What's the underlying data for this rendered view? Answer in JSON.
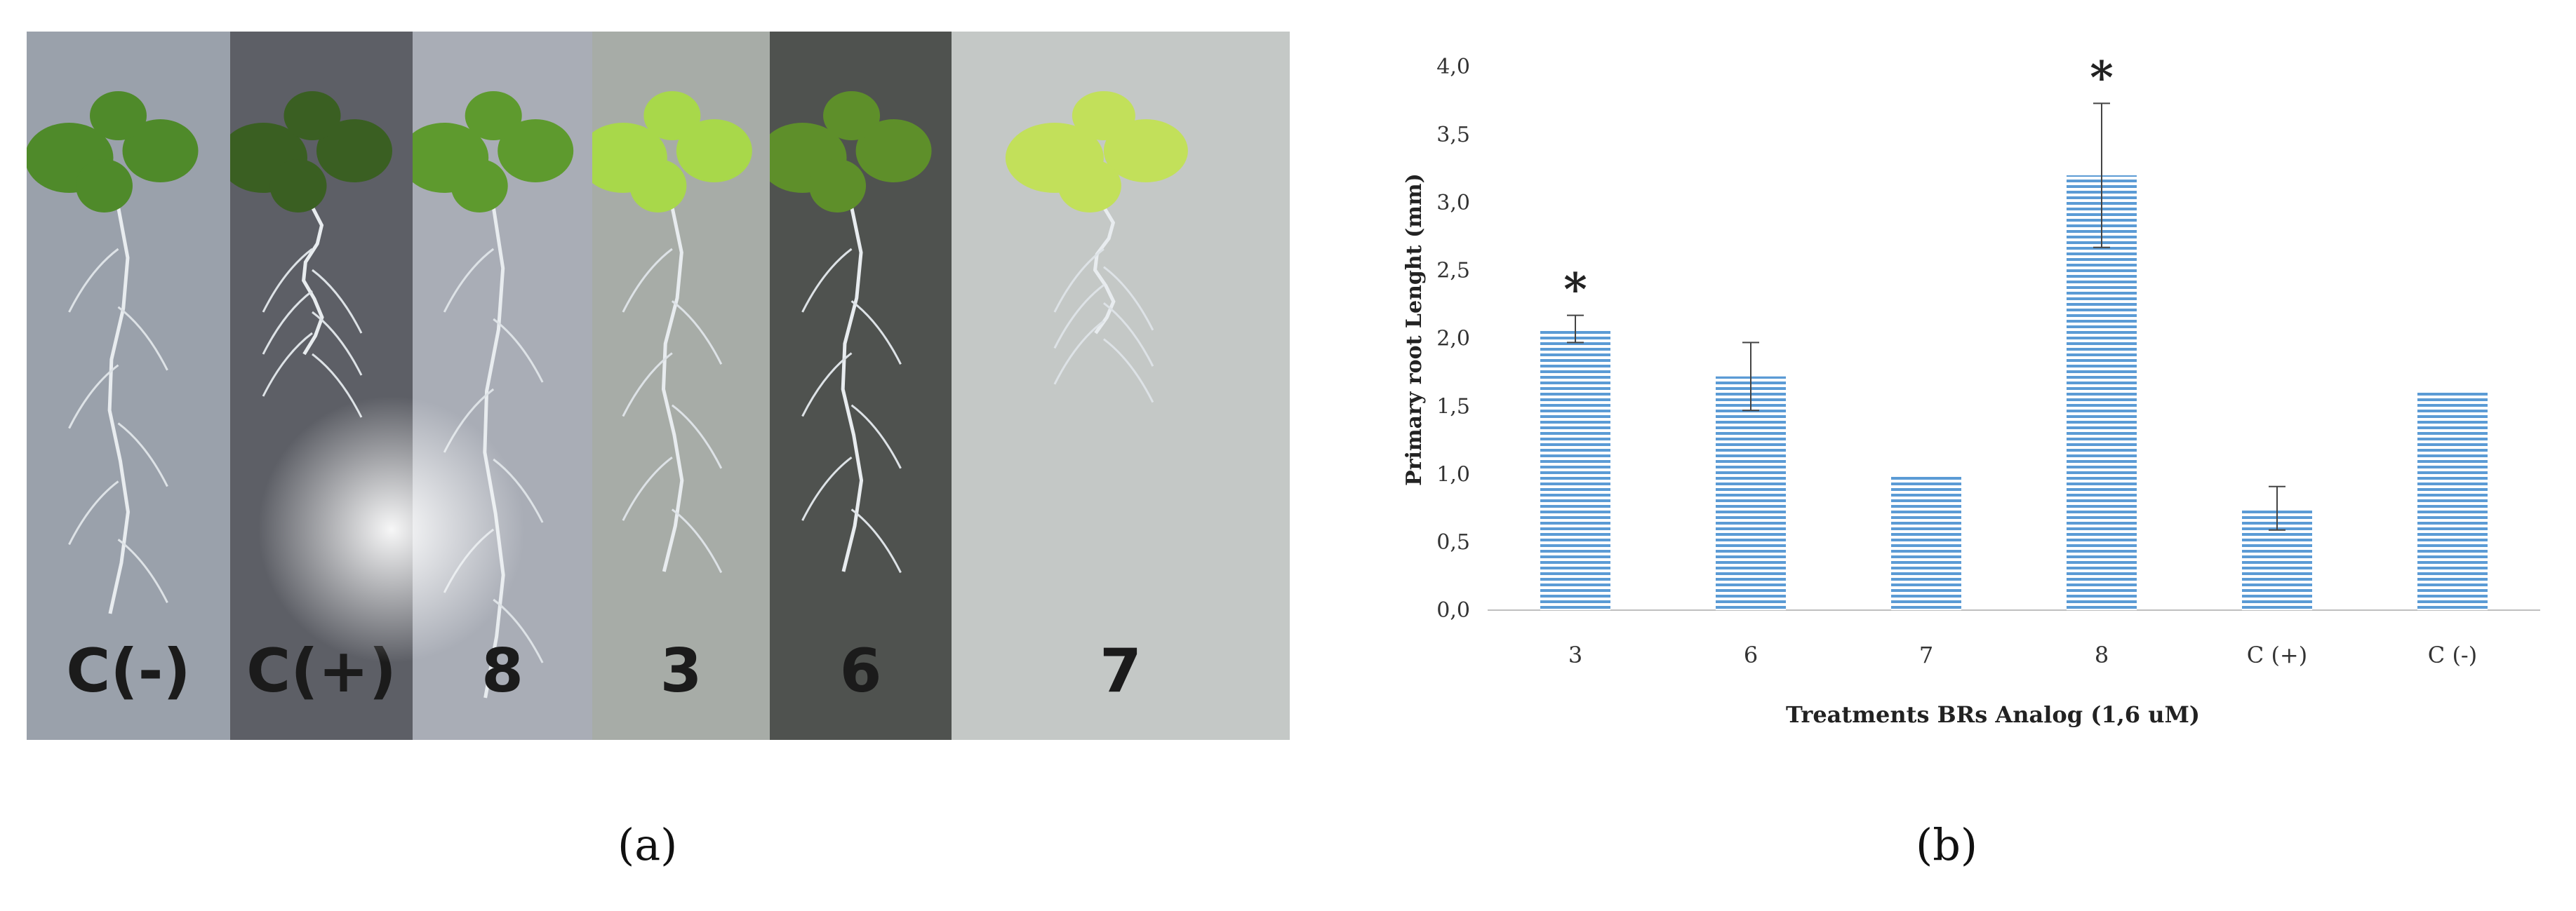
{
  "panel_a": {
    "caption": "(a)",
    "strips": [
      {
        "label": "C(-)",
        "bg": "#9aa1ab"
      },
      {
        "label": "C(+)",
        "bg": "#5d5f66"
      },
      {
        "label": "8",
        "bg": "#a9adb6"
      },
      {
        "label": "3",
        "bg": "#a7aca7"
      },
      {
        "label": "6",
        "bg": "#4f524f"
      },
      {
        "label": "7",
        "bg": "#c4c8c6"
      }
    ]
  },
  "panel_b": {
    "caption": "(b)"
  },
  "chart_data": {
    "type": "bar",
    "title": "",
    "xlabel": "Treatments BRs Analog  (1,6 uM)",
    "ylabel": "Primary root Lenght (mm)",
    "categories": [
      "3",
      "6",
      "7",
      "8",
      "C (+)",
      "C (-)"
    ],
    "values": [
      2.07,
      1.72,
      1.0,
      3.2,
      0.75,
      1.6
    ],
    "error": [
      0.1,
      0.25,
      null,
      0.53,
      0.16,
      null
    ],
    "significance": [
      "*",
      "",
      "",
      "*",
      "",
      ""
    ],
    "ylim": [
      0,
      4
    ],
    "yticks": [
      "0,0",
      "0,5",
      "1,0",
      "1,5",
      "2,0",
      "2,5",
      "3,0",
      "3,5",
      "4,0"
    ],
    "grid": false,
    "bar_color": "#5b9bd5",
    "bar_pattern": "horizontal-lines"
  }
}
